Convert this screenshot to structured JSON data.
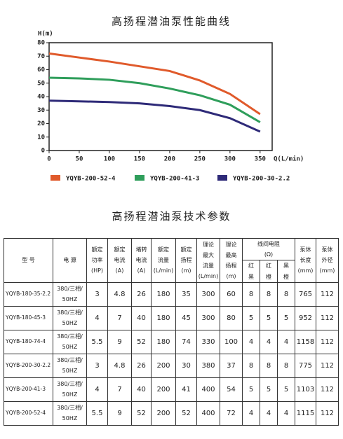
{
  "chart_data": {
    "type": "line",
    "title": "高扬程潜油泵性能曲线",
    "y_label": "H(m)",
    "x_label": "Q(L/min)",
    "x": [
      0,
      50,
      100,
      150,
      200,
      250,
      300,
      350
    ],
    "series": [
      {
        "name": "YQYB-200-52-4",
        "color": "#e05a2b",
        "values": [
          72,
          69,
          66,
          62.5,
          59,
          52,
          42,
          27
        ]
      },
      {
        "name": "YQYB-200-41-3",
        "color": "#2f9e5b",
        "values": [
          54,
          53.5,
          52.5,
          50,
          46,
          41,
          34,
          21
        ]
      },
      {
        "name": "YQYB-200-30-2.2",
        "color": "#2e2a78",
        "values": [
          37,
          36.5,
          36,
          35,
          33,
          30,
          24,
          14
        ]
      }
    ],
    "xlim": [
      0,
      370
    ],
    "xticks": [
      0,
      50,
      100,
      150,
      200,
      250,
      300,
      350
    ],
    "ylim": [
      0,
      80
    ],
    "yticks": [
      0,
      10,
      20,
      30,
      40,
      50,
      60,
      70,
      80
    ],
    "grid": false
  },
  "table": {
    "title": "高扬程潜油泵技术参数",
    "head": [
      [
        "型 号"
      ],
      [
        "电 源"
      ],
      [
        "额定",
        "功率",
        "(HP)"
      ],
      [
        "额定",
        "电流",
        "(A)"
      ],
      [
        "堵转",
        "电流",
        "(A)"
      ],
      [
        "额定",
        "流量",
        "(L/min)"
      ],
      [
        "额定",
        "扬程",
        "(m)"
      ],
      [
        "理论",
        "最大",
        "流量",
        "(L/min)"
      ],
      [
        "理论",
        "最高",
        "扬程",
        "(m)"
      ]
    ],
    "resistance": {
      "label": [
        "线间电阻",
        "(Ω)"
      ],
      "sub": [
        [
          "红",
          "黑"
        ],
        [
          "红",
          "橙"
        ],
        [
          "黑",
          "橙"
        ]
      ]
    },
    "tail": [
      [
        "泵体",
        "长度",
        "(mm)"
      ],
      [
        "泵体",
        "外径",
        "(mm)"
      ]
    ],
    "rows": [
      [
        "YQYB-180-35-2.2",
        [
          "380/三相/",
          "50HZ"
        ],
        3,
        4.8,
        26,
        180,
        35,
        300,
        60,
        8,
        8,
        8,
        765,
        112
      ],
      [
        "YQYB-180-45-3",
        [
          "380/三相/",
          "50HZ"
        ],
        4,
        7,
        40,
        180,
        45,
        300,
        80,
        5,
        5,
        5,
        952,
        112
      ],
      [
        "YQYB-180-74-4",
        [
          "380/三相/",
          "50HZ"
        ],
        5.5,
        9,
        52,
        180,
        74,
        330,
        100,
        4,
        4,
        4,
        1158,
        112
      ],
      [
        "YQYB-200-30-2.2",
        [
          "380/三相/",
          "50HZ"
        ],
        3,
        4.8,
        26,
        200,
        30,
        380,
        37,
        8,
        8,
        8,
        775,
        112
      ],
      [
        "YQYB-200-41-3",
        [
          "380/三相/",
          "50HZ"
        ],
        4,
        7,
        40,
        200,
        41,
        400,
        54,
        5,
        5,
        5,
        1103,
        112
      ],
      [
        "YQYB-200-52-4",
        [
          "380/三相/",
          "50HZ"
        ],
        5.5,
        9,
        52,
        200,
        52,
        400,
        72,
        4,
        4,
        4,
        1115,
        112
      ]
    ]
  }
}
